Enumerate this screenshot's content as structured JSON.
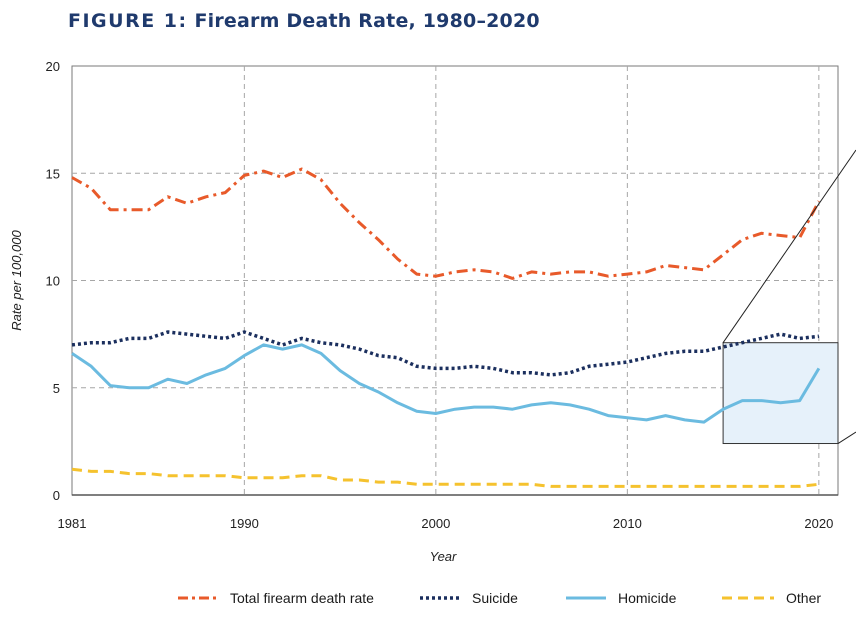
{
  "figure": {
    "label": "FIGURE 1:",
    "title": "Firearm Death Rate, 1980–2020"
  },
  "colors": {
    "title": "#1f3a6d",
    "total": "#e85a2a",
    "suicide": "#1b2f5e",
    "homicide": "#6bbbe0",
    "other": "#f5c22e",
    "grid": "#a6a6a6",
    "highlight_fill": "#e6f1fa"
  },
  "chart_data": {
    "type": "line",
    "title": "Firearm Death Rate, 1980–2020",
    "xlabel": "Year",
    "ylabel": "Rate per 100,000",
    "xlim": [
      1981,
      2021
    ],
    "ylim": [
      0,
      20
    ],
    "x_ticks": [
      1981,
      1990,
      2000,
      2010,
      2020
    ],
    "y_ticks": [
      0,
      5,
      10,
      15,
      20
    ],
    "grid": "dashed",
    "x": [
      1981,
      1982,
      1983,
      1984,
      1985,
      1986,
      1987,
      1988,
      1989,
      1990,
      1991,
      1992,
      1993,
      1994,
      1995,
      1996,
      1997,
      1998,
      1999,
      2000,
      2001,
      2002,
      2003,
      2004,
      2005,
      2006,
      2007,
      2008,
      2009,
      2010,
      2011,
      2012,
      2013,
      2014,
      2015,
      2016,
      2017,
      2018,
      2019,
      2020
    ],
    "series": [
      {
        "name": "Total firearm death rate",
        "color_key": "total",
        "style": "dashdot",
        "values": [
          14.8,
          14.3,
          13.3,
          13.3,
          13.3,
          13.9,
          13.6,
          13.9,
          14.1,
          14.9,
          15.1,
          14.8,
          15.2,
          14.7,
          13.6,
          12.7,
          11.9,
          11.0,
          10.3,
          10.2,
          10.4,
          10.5,
          10.4,
          10.1,
          10.4,
          10.3,
          10.4,
          10.4,
          10.2,
          10.3,
          10.4,
          10.7,
          10.6,
          10.5,
          11.2,
          11.9,
          12.2,
          12.1,
          12.0,
          13.7
        ]
      },
      {
        "name": "Suicide",
        "color_key": "suicide",
        "style": "dotted",
        "values": [
          7.0,
          7.1,
          7.1,
          7.3,
          7.3,
          7.6,
          7.5,
          7.4,
          7.3,
          7.6,
          7.3,
          7.0,
          7.3,
          7.1,
          7.0,
          6.8,
          6.5,
          6.4,
          6.0,
          5.9,
          5.9,
          6.0,
          5.9,
          5.7,
          5.7,
          5.6,
          5.7,
          6.0,
          6.1,
          6.2,
          6.4,
          6.6,
          6.7,
          6.7,
          6.9,
          7.1,
          7.3,
          7.5,
          7.3,
          7.4
        ]
      },
      {
        "name": "Homicide",
        "color_key": "homicide",
        "style": "solid",
        "values": [
          6.6,
          6.0,
          5.1,
          5.0,
          5.0,
          5.4,
          5.2,
          5.6,
          5.9,
          6.5,
          7.0,
          6.8,
          7.0,
          6.6,
          5.8,
          5.2,
          4.8,
          4.3,
          3.9,
          3.8,
          4.0,
          4.1,
          4.1,
          4.0,
          4.2,
          4.3,
          4.2,
          4.0,
          3.7,
          3.6,
          3.5,
          3.7,
          3.5,
          3.4,
          4.0,
          4.4,
          4.4,
          4.3,
          4.4,
          5.9
        ]
      },
      {
        "name": "Other",
        "color_key": "other",
        "style": "dashed",
        "values": [
          1.2,
          1.1,
          1.1,
          1.0,
          1.0,
          0.9,
          0.9,
          0.9,
          0.9,
          0.8,
          0.8,
          0.8,
          0.9,
          0.9,
          0.7,
          0.7,
          0.6,
          0.6,
          0.5,
          0.5,
          0.5,
          0.5,
          0.5,
          0.5,
          0.5,
          0.4,
          0.4,
          0.4,
          0.4,
          0.4,
          0.4,
          0.4,
          0.4,
          0.4,
          0.4,
          0.4,
          0.4,
          0.4,
          0.4,
          0.5
        ]
      }
    ],
    "highlight": {
      "x_range": [
        2015,
        2021
      ],
      "y_range": [
        2.4,
        7.1
      ]
    }
  }
}
